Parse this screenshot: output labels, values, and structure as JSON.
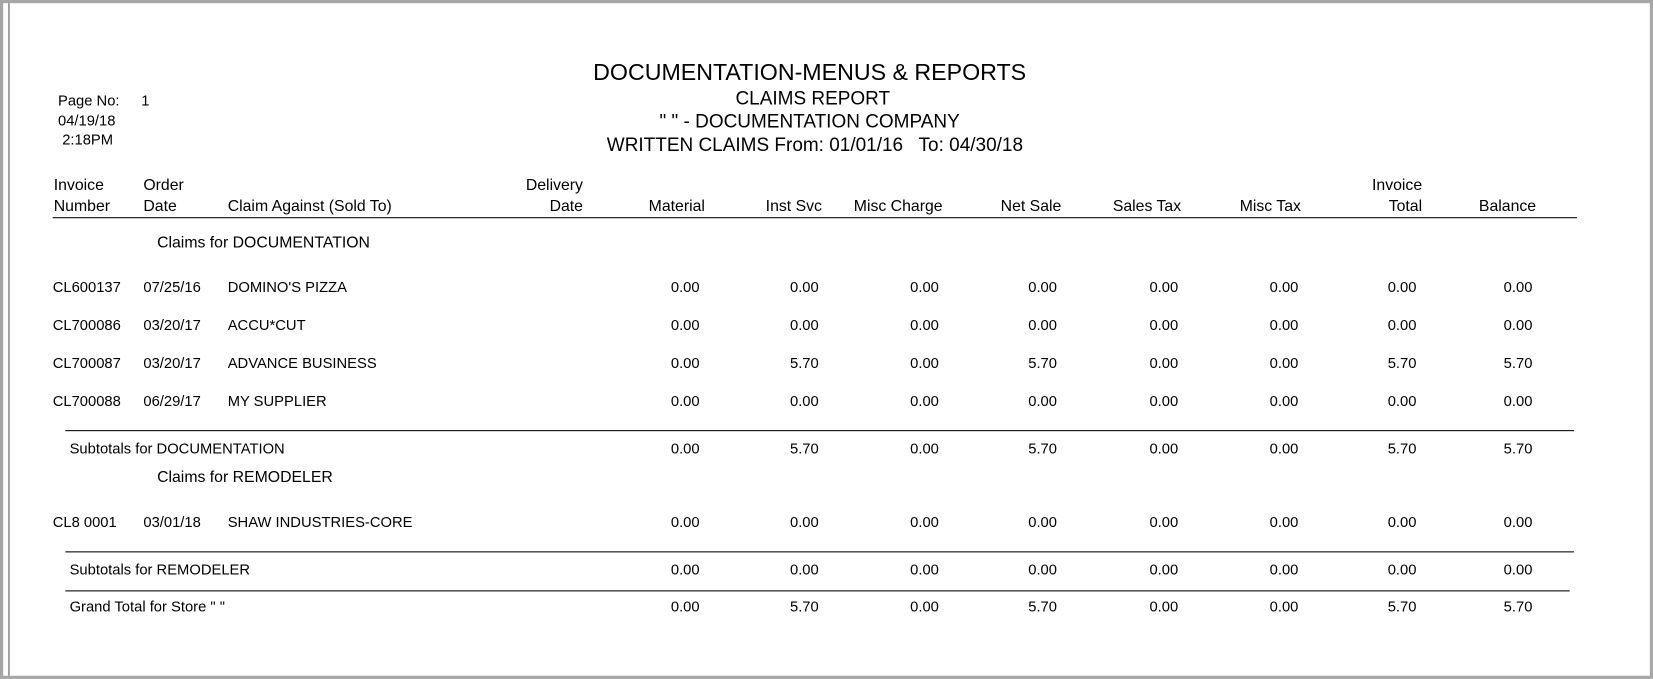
{
  "header": {
    "title": "DOCUMENTATION-MENUS & REPORTS",
    "subtitle": "CLAIMS REPORT",
    "company": "\" \" - DOCUMENTATION COMPANY",
    "range": "WRITTEN CLAIMS From: 01/01/16   To: 04/30/18",
    "page_label": "Page No:",
    "page_no": "1",
    "date": "04/19/18",
    "time": "2:18PM"
  },
  "columns": [
    [
      "Invoice",
      "Number"
    ],
    [
      "Order",
      "Date"
    ],
    [
      "Claim Against (Sold To)"
    ],
    [
      "Delivery",
      "Date"
    ],
    [
      "Material"
    ],
    [
      "Inst Svc"
    ],
    [
      "Misc Charge"
    ],
    [
      "Net Sale"
    ],
    [
      "Sales Tax"
    ],
    [
      "Misc Tax"
    ],
    [
      "Invoice",
      "Total"
    ],
    [
      "Balance"
    ]
  ],
  "groups": [
    {
      "title": "Claims for DOCUMENTATION",
      "rows": [
        [
          "CL600137",
          "07/25/16",
          "DOMINO'S PIZZA",
          "0.00",
          "0.00",
          "0.00",
          "0.00",
          "0.00",
          "0.00",
          "0.00",
          "0.00"
        ],
        [
          "CL700086",
          "03/20/17",
          "ACCU*CUT",
          "0.00",
          "0.00",
          "0.00",
          "0.00",
          "0.00",
          "0.00",
          "0.00",
          "0.00"
        ],
        [
          "CL700087",
          "03/20/17",
          "ADVANCE BUSINESS",
          "0.00",
          "5.70",
          "0.00",
          "5.70",
          "0.00",
          "0.00",
          "5.70",
          "5.70"
        ],
        [
          "CL700088",
          "06/29/17",
          "MY SUPPLIER",
          "0.00",
          "0.00",
          "0.00",
          "0.00",
          "0.00",
          "0.00",
          "0.00",
          "0.00"
        ]
      ],
      "subtotal": [
        "Subtotals for DOCUMENTATION",
        "0.00",
        "5.70",
        "0.00",
        "5.70",
        "0.00",
        "0.00",
        "5.70",
        "5.70"
      ]
    },
    {
      "title": "Claims for REMODELER",
      "rows": [
        [
          "CL8 0001",
          "03/01/18",
          "SHAW INDUSTRIES-CORE",
          "0.00",
          "0.00",
          "0.00",
          "0.00",
          "0.00",
          "0.00",
          "0.00",
          "0.00"
        ]
      ],
      "subtotal": [
        "Subtotals for REMODELER",
        "0.00",
        "0.00",
        "0.00",
        "0.00",
        "0.00",
        "0.00",
        "0.00",
        "0.00"
      ]
    }
  ],
  "grand_total": [
    "Grand Total for Store \" \"",
    "0.00",
    "5.70",
    "0.00",
    "5.70",
    "0.00",
    "0.00",
    "5.70",
    "5.70"
  ]
}
